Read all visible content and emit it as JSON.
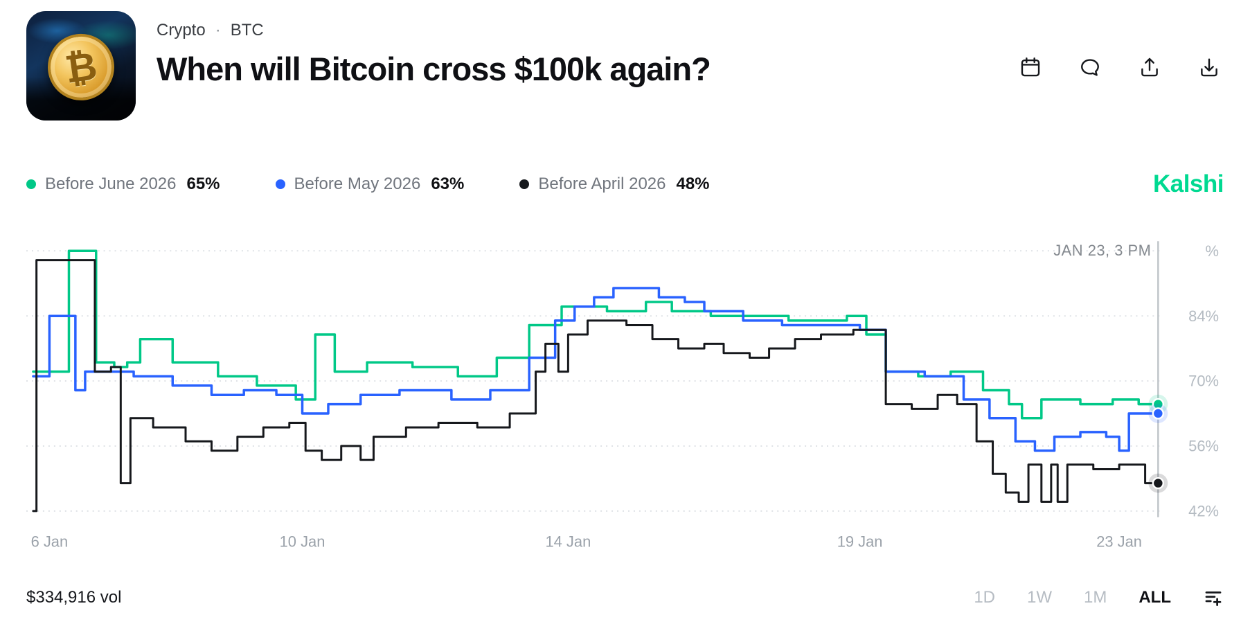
{
  "header": {
    "breadcrumb": {
      "category": "Crypto",
      "separator": "·",
      "ticker": "BTC"
    },
    "title": "When will Bitcoin cross $100k again?",
    "thumbnail": {
      "icon": "bitcoin-coin",
      "glyph": "₿"
    },
    "action_icons": [
      "calendar",
      "comment",
      "share",
      "download"
    ]
  },
  "legend": [
    {
      "label": "Before June 2026",
      "value": "65%",
      "color": "#00c887"
    },
    {
      "label": "Before May 2026",
      "value": "63%",
      "color": "#2962ff"
    },
    {
      "label": "Before April 2026",
      "value": "48%",
      "color": "#16181c"
    }
  ],
  "brand": {
    "name": "Kalshi",
    "color": "#00d991"
  },
  "chart_data": {
    "type": "line",
    "style": "step-after",
    "x_unit": "day of January",
    "x_range": [
      5.85,
      23.2
    ],
    "y_range_pct": [
      42,
      98
    ],
    "grid": true,
    "gridlines_pct": [
      98,
      84,
      70,
      56,
      42
    ],
    "y_tick_labels": [
      "%",
      "84%",
      "70%",
      "56%",
      "42%"
    ],
    "x_ticks": [
      {
        "label": "6 Jan",
        "day": 6.1
      },
      {
        "label": "10 Jan",
        "day": 10.0
      },
      {
        "label": "14 Jan",
        "day": 14.1
      },
      {
        "label": "19 Jan",
        "day": 18.6
      },
      {
        "label": "23 Jan",
        "day": 22.6
      }
    ],
    "crosshair": {
      "label": "JAN 23, 3 PM",
      "day": 23.2
    },
    "series": [
      {
        "name": "Before June 2026",
        "color": "#00c887",
        "end_value": 65,
        "points": [
          [
            5.85,
            72
          ],
          [
            6.35,
            72
          ],
          [
            6.4,
            98
          ],
          [
            6.78,
            98
          ],
          [
            6.82,
            74
          ],
          [
            7.1,
            73
          ],
          [
            7.3,
            74
          ],
          [
            7.5,
            79
          ],
          [
            7.9,
            79
          ],
          [
            8.0,
            74
          ],
          [
            8.6,
            74
          ],
          [
            8.7,
            71
          ],
          [
            9.2,
            71
          ],
          [
            9.3,
            69
          ],
          [
            9.8,
            69
          ],
          [
            9.9,
            66
          ],
          [
            10.1,
            66
          ],
          [
            10.2,
            80
          ],
          [
            10.45,
            80
          ],
          [
            10.5,
            72
          ],
          [
            10.9,
            72
          ],
          [
            11.0,
            74
          ],
          [
            11.6,
            74
          ],
          [
            11.7,
            73
          ],
          [
            12.3,
            73
          ],
          [
            12.4,
            71
          ],
          [
            12.9,
            71
          ],
          [
            13.0,
            75
          ],
          [
            13.4,
            75
          ],
          [
            13.5,
            82
          ],
          [
            13.9,
            82
          ],
          [
            14.0,
            86
          ],
          [
            14.6,
            86
          ],
          [
            14.7,
            85
          ],
          [
            15.2,
            85
          ],
          [
            15.3,
            87
          ],
          [
            15.6,
            87
          ],
          [
            15.7,
            85
          ],
          [
            16.2,
            85
          ],
          [
            16.3,
            84
          ],
          [
            17.4,
            84
          ],
          [
            17.5,
            83
          ],
          [
            18.3,
            83
          ],
          [
            18.4,
            84
          ],
          [
            18.6,
            84
          ],
          [
            18.7,
            80
          ],
          [
            18.9,
            80
          ],
          [
            19.0,
            72
          ],
          [
            19.4,
            72
          ],
          [
            19.5,
            71
          ],
          [
            19.9,
            71
          ],
          [
            20.0,
            72
          ],
          [
            20.4,
            72
          ],
          [
            20.5,
            68
          ],
          [
            20.8,
            68
          ],
          [
            20.9,
            65
          ],
          [
            21.1,
            62
          ],
          [
            21.3,
            62
          ],
          [
            21.4,
            66
          ],
          [
            21.9,
            66
          ],
          [
            22.0,
            65
          ],
          [
            22.4,
            65
          ],
          [
            22.5,
            66
          ],
          [
            22.8,
            66
          ],
          [
            22.9,
            65
          ],
          [
            23.2,
            65
          ]
        ]
      },
      {
        "name": "Before May 2026",
        "color": "#2962ff",
        "end_value": 63,
        "points": [
          [
            5.85,
            71
          ],
          [
            6.05,
            71
          ],
          [
            6.1,
            84
          ],
          [
            6.45,
            84
          ],
          [
            6.5,
            68
          ],
          [
            6.6,
            68
          ],
          [
            6.65,
            72
          ],
          [
            7.3,
            72
          ],
          [
            7.4,
            71
          ],
          [
            7.9,
            71
          ],
          [
            8.0,
            69
          ],
          [
            8.5,
            69
          ],
          [
            8.6,
            67
          ],
          [
            9.0,
            67
          ],
          [
            9.1,
            68
          ],
          [
            9.5,
            68
          ],
          [
            9.6,
            67
          ],
          [
            9.9,
            67
          ],
          [
            10.0,
            63
          ],
          [
            10.3,
            63
          ],
          [
            10.4,
            65
          ],
          [
            10.8,
            65
          ],
          [
            10.9,
            67
          ],
          [
            11.4,
            67
          ],
          [
            11.5,
            68
          ],
          [
            12.2,
            68
          ],
          [
            12.3,
            66
          ],
          [
            12.8,
            66
          ],
          [
            12.9,
            68
          ],
          [
            13.4,
            68
          ],
          [
            13.5,
            75
          ],
          [
            13.8,
            75
          ],
          [
            13.9,
            83
          ],
          [
            14.1,
            83
          ],
          [
            14.2,
            86
          ],
          [
            14.4,
            86
          ],
          [
            14.5,
            88
          ],
          [
            14.7,
            88
          ],
          [
            14.8,
            90
          ],
          [
            15.4,
            90
          ],
          [
            15.5,
            88
          ],
          [
            15.8,
            88
          ],
          [
            15.9,
            87
          ],
          [
            16.1,
            87
          ],
          [
            16.2,
            85
          ],
          [
            16.7,
            85
          ],
          [
            16.8,
            83
          ],
          [
            17.3,
            83
          ],
          [
            17.4,
            82
          ],
          [
            18.5,
            82
          ],
          [
            18.6,
            81
          ],
          [
            18.9,
            81
          ],
          [
            19.0,
            72
          ],
          [
            19.5,
            72
          ],
          [
            19.6,
            71
          ],
          [
            20.1,
            71
          ],
          [
            20.2,
            66
          ],
          [
            20.5,
            66
          ],
          [
            20.6,
            62
          ],
          [
            20.9,
            62
          ],
          [
            21.0,
            57
          ],
          [
            21.2,
            57
          ],
          [
            21.3,
            55
          ],
          [
            21.5,
            55
          ],
          [
            21.6,
            58
          ],
          [
            21.9,
            58
          ],
          [
            22.0,
            59
          ],
          [
            22.3,
            59
          ],
          [
            22.4,
            58
          ],
          [
            22.6,
            55
          ],
          [
            22.7,
            55
          ],
          [
            22.75,
            63
          ],
          [
            23.2,
            63
          ]
        ]
      },
      {
        "name": "Before April 2026",
        "color": "#16181c",
        "end_value": 48,
        "points": [
          [
            5.85,
            42
          ],
          [
            5.9,
            96
          ],
          [
            6.75,
            96
          ],
          [
            6.8,
            72
          ],
          [
            7.0,
            72
          ],
          [
            7.05,
            73
          ],
          [
            7.15,
            73
          ],
          [
            7.2,
            48
          ],
          [
            7.3,
            48
          ],
          [
            7.35,
            62
          ],
          [
            7.6,
            62
          ],
          [
            7.7,
            60
          ],
          [
            8.1,
            60
          ],
          [
            8.2,
            57
          ],
          [
            8.5,
            57
          ],
          [
            8.6,
            55
          ],
          [
            8.9,
            55
          ],
          [
            9.0,
            58
          ],
          [
            9.3,
            58
          ],
          [
            9.4,
            60
          ],
          [
            9.7,
            60
          ],
          [
            9.8,
            61
          ],
          [
            10.0,
            61
          ],
          [
            10.05,
            55
          ],
          [
            10.2,
            55
          ],
          [
            10.3,
            53
          ],
          [
            10.5,
            53
          ],
          [
            10.6,
            56
          ],
          [
            10.8,
            56
          ],
          [
            10.9,
            53
          ],
          [
            11.0,
            53
          ],
          [
            11.1,
            58
          ],
          [
            11.5,
            58
          ],
          [
            11.6,
            60
          ],
          [
            12.0,
            60
          ],
          [
            12.1,
            61
          ],
          [
            12.6,
            61
          ],
          [
            12.7,
            60
          ],
          [
            13.1,
            60
          ],
          [
            13.2,
            63
          ],
          [
            13.5,
            63
          ],
          [
            13.6,
            72
          ],
          [
            13.7,
            72
          ],
          [
            13.75,
            78
          ],
          [
            13.9,
            78
          ],
          [
            13.95,
            72
          ],
          [
            14.05,
            72
          ],
          [
            14.1,
            80
          ],
          [
            14.3,
            80
          ],
          [
            14.4,
            83
          ],
          [
            14.9,
            83
          ],
          [
            15.0,
            82
          ],
          [
            15.3,
            82
          ],
          [
            15.4,
            79
          ],
          [
            15.7,
            79
          ],
          [
            15.8,
            77
          ],
          [
            16.1,
            77
          ],
          [
            16.2,
            78
          ],
          [
            16.4,
            78
          ],
          [
            16.5,
            76
          ],
          [
            16.8,
            76
          ],
          [
            16.9,
            75
          ],
          [
            17.1,
            75
          ],
          [
            17.2,
            77
          ],
          [
            17.5,
            77
          ],
          [
            17.6,
            79
          ],
          [
            17.9,
            79
          ],
          [
            18.0,
            80
          ],
          [
            18.4,
            80
          ],
          [
            18.5,
            81
          ],
          [
            18.9,
            81
          ],
          [
            19.0,
            65
          ],
          [
            19.3,
            65
          ],
          [
            19.4,
            64
          ],
          [
            19.7,
            64
          ],
          [
            19.8,
            67
          ],
          [
            20.0,
            67
          ],
          [
            20.1,
            65
          ],
          [
            20.3,
            65
          ],
          [
            20.4,
            57
          ],
          [
            20.6,
            57
          ],
          [
            20.65,
            50
          ],
          [
            20.8,
            50
          ],
          [
            20.85,
            46
          ],
          [
            21.0,
            46
          ],
          [
            21.05,
            44
          ],
          [
            21.15,
            44
          ],
          [
            21.2,
            52
          ],
          [
            21.35,
            52
          ],
          [
            21.4,
            44
          ],
          [
            21.5,
            44
          ],
          [
            21.55,
            52
          ],
          [
            21.6,
            52
          ],
          [
            21.65,
            44
          ],
          [
            21.75,
            44
          ],
          [
            21.8,
            52
          ],
          [
            22.1,
            52
          ],
          [
            22.2,
            51
          ],
          [
            22.5,
            51
          ],
          [
            22.6,
            52
          ],
          [
            22.9,
            52
          ],
          [
            23.0,
            48
          ],
          [
            23.2,
            48
          ]
        ]
      }
    ],
    "colors": {
      "grid": "#d8dce1",
      "crosshair": "#c0c5ca",
      "axis_text": "#b4bbc2",
      "x_axis_text": "#9aa1a9",
      "crosshair_text": "#84898f"
    }
  },
  "footer": {
    "volume": "$334,916 vol",
    "ranges": [
      {
        "label": "1D",
        "active": false
      },
      {
        "label": "1W",
        "active": false
      },
      {
        "label": "1M",
        "active": false
      },
      {
        "label": "ALL",
        "active": true
      }
    ],
    "settings_icon": "chart-settings"
  }
}
